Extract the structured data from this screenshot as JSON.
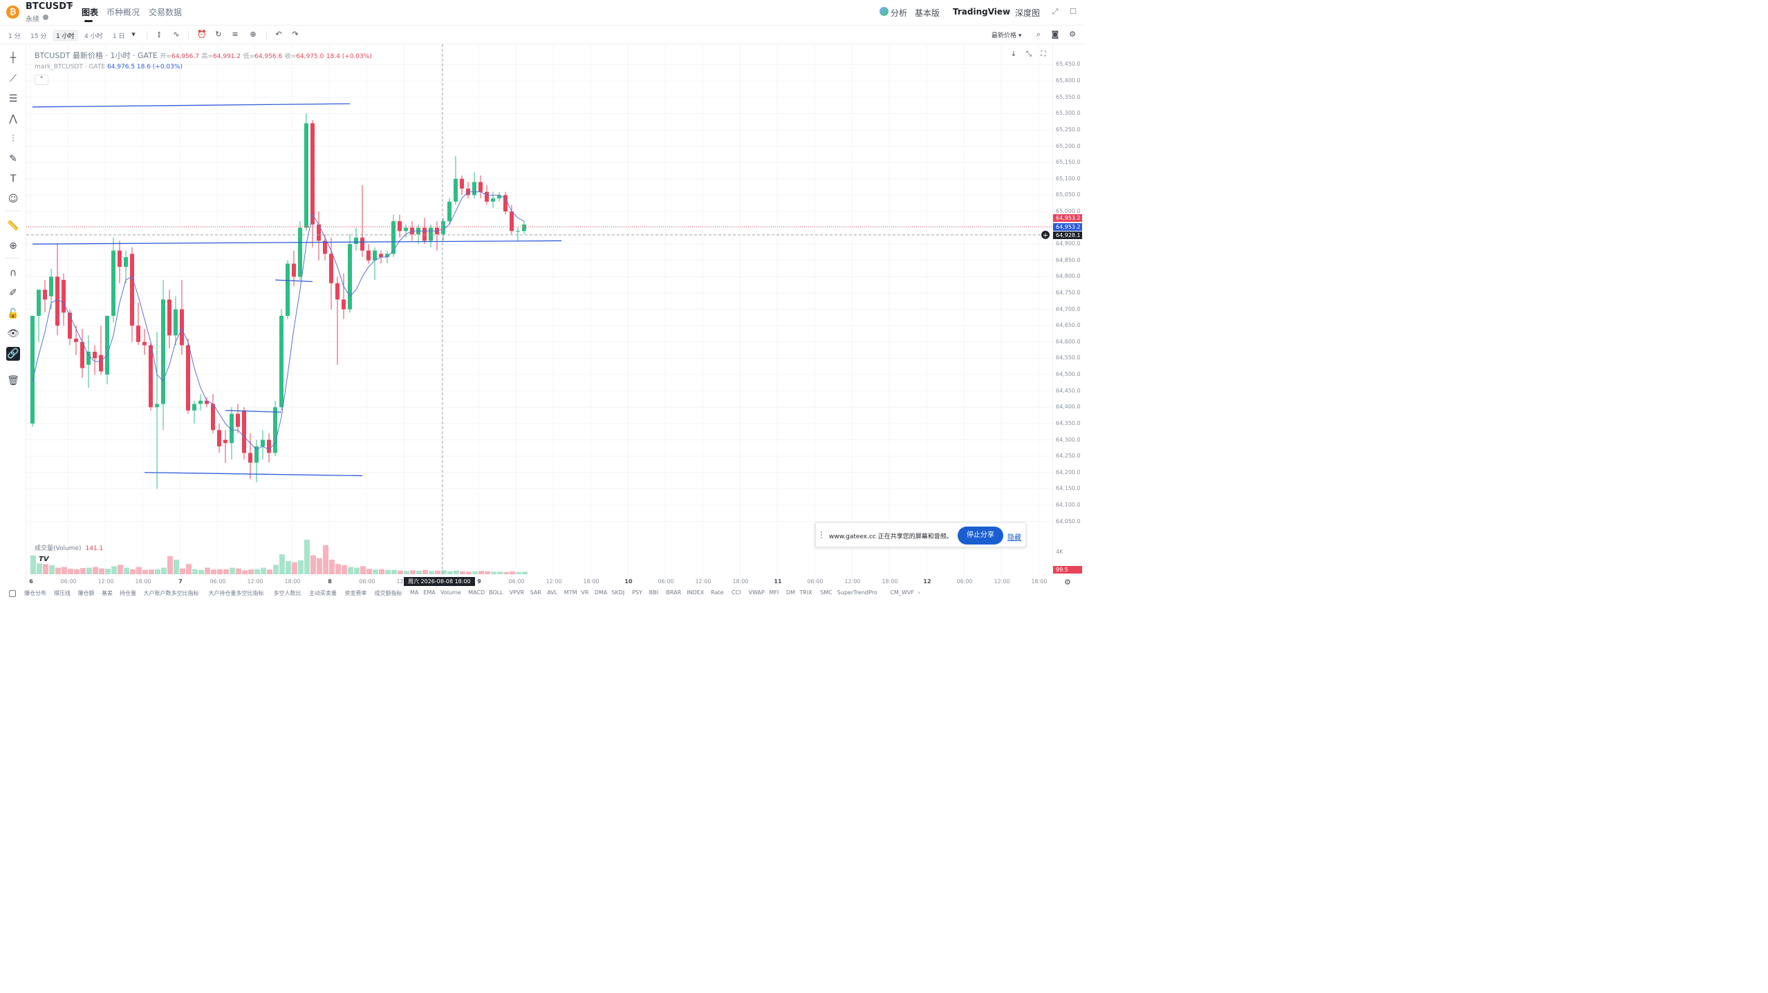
{
  "header": {
    "coin_icon": "bitcoin-icon",
    "symbol": "BTCUSDT",
    "subtitle": "永续",
    "tabs": [
      {
        "label": "图表",
        "active": true
      },
      {
        "label": "币种概况",
        "active": false
      },
      {
        "label": "交易数据",
        "active": false
      }
    ],
    "right": {
      "analysis": "分析",
      "basic": "基本版",
      "tradingview": "TradingView",
      "depth": "深度图"
    }
  },
  "toolbar": {
    "timeframes": [
      {
        "label": "1 分",
        "active": false
      },
      {
        "label": "15 分",
        "active": false
      },
      {
        "label": "1 小时",
        "active": true
      },
      {
        "label": "4 小时",
        "active": false
      },
      {
        "label": "1 日",
        "active": false
      }
    ],
    "price_type": "最新价格"
  },
  "legend": {
    "title": "BTCUSDT 最新价格 · 1小时 · GATE",
    "open_label": "开=",
    "open": "64,956.7",
    "high_label": "高=",
    "high": "64,991.2",
    "low_label": "低=",
    "low": "64,956.6",
    "close_label": "收=",
    "close": "64,975.0",
    "change": "18.4 (+0.03%)",
    "mark_title": "mark_BTCUSDT · GATE",
    "mark_value": "64,976.5",
    "mark_change": "18.6 (+0.03%)"
  },
  "volume": {
    "label": "成交量(Volume)",
    "value": "141.1",
    "axis_label": "4K",
    "last_label": "99.5"
  },
  "price_axis": {
    "ticks": [
      "65,450.0",
      "65,400.0",
      "65,350.0",
      "65,300.0",
      "65,250.0",
      "65,200.0",
      "65,150.0",
      "65,100.0",
      "65,050.0",
      "65,000.0",
      "64,900.0",
      "64,850.0",
      "64,800.0",
      "64,750.0",
      "64,700.0",
      "64,650.0",
      "64,600.0",
      "64,550.0",
      "64,500.0",
      "64,450.0",
      "64,400.0",
      "64,350.0",
      "64,300.0",
      "64,250.0",
      "64,200.0",
      "64,150.0",
      "64,100.0",
      "64,050.0"
    ],
    "labels": {
      "last": "64,953.2",
      "mark": "64,953.2",
      "crosshair": "64,928.1"
    },
    "colors": {
      "last": "#e8435a",
      "mark": "#2b5bd7",
      "crosshair": "#1e2329"
    }
  },
  "time_axis": {
    "ticks": [
      {
        "label": "6",
        "day": true
      },
      {
        "label": "06:00"
      },
      {
        "label": "12:00"
      },
      {
        "label": "18:00"
      },
      {
        "label": "7",
        "day": true
      },
      {
        "label": "06:00"
      },
      {
        "label": "12:00"
      },
      {
        "label": "18:00"
      },
      {
        "label": "8",
        "day": true
      },
      {
        "label": "06:00"
      },
      {
        "label": "12:00"
      },
      {
        "label": "18:00"
      },
      {
        "label": "9",
        "day": true
      },
      {
        "label": "06:00"
      },
      {
        "label": "12:00"
      },
      {
        "label": "18:00"
      },
      {
        "label": "10",
        "day": true
      },
      {
        "label": "06:00"
      },
      {
        "label": "12:00"
      },
      {
        "label": "18:00"
      },
      {
        "label": "11",
        "day": true
      },
      {
        "label": "06:00"
      },
      {
        "label": "12:00"
      },
      {
        "label": "18:00"
      },
      {
        "label": "12",
        "day": true
      },
      {
        "label": "06:00"
      },
      {
        "label": "12:00"
      },
      {
        "label": "18:00"
      }
    ],
    "crosshair_label": "周六 2026-08-08   18:00"
  },
  "indicators": [
    "爆仓分布",
    "撑压线",
    "爆仓额",
    "基差",
    "持仓量",
    "大户账户数多空比指标",
    "大户持仓量多空比指标",
    "多空人数比",
    "主动买卖量",
    "资金费率",
    "成交额指标",
    "MA",
    "EMA",
    "Volume",
    "MACD",
    "BOLL",
    "VPVR",
    "SAR",
    "AVL",
    "MTM",
    "VR",
    "DMA",
    "SKDJ",
    "PSY",
    "BBI",
    "BRAR",
    "INDEX",
    "Rate",
    "CCI",
    "VWAP",
    "MFI",
    "DM",
    "TRIX",
    "SMC",
    "SuperTrendPro",
    "CM_WVF"
  ],
  "share_banner": {
    "text": "www.gateex.cc 正在共享您的屏幕和音频。",
    "stop_button": "停止分享",
    "hide_link": "隐藏"
  },
  "chart_data": {
    "type": "candlestick",
    "timeframe": "1小时",
    "ylim": [
      64030,
      65470
    ],
    "up_color": "#2ebd85",
    "down_color": "#e8435a",
    "candles": [
      {
        "o": 64350,
        "h": 64680,
        "l": 64340,
        "c": 64680
      },
      {
        "o": 64680,
        "h": 64760,
        "l": 64600,
        "c": 64760
      },
      {
        "o": 64760,
        "h": 64790,
        "l": 64690,
        "c": 64730
      },
      {
        "o": 64740,
        "h": 64825,
        "l": 64700,
        "c": 64800
      },
      {
        "o": 64800,
        "h": 64900,
        "l": 64620,
        "c": 64650
      },
      {
        "o": 64790,
        "h": 64810,
        "l": 64650,
        "c": 64690
      },
      {
        "o": 64690,
        "h": 64700,
        "l": 64590,
        "c": 64610
      },
      {
        "o": 64610,
        "h": 64650,
        "l": 64560,
        "c": 64600
      },
      {
        "o": 64600,
        "h": 64640,
        "l": 64490,
        "c": 64520
      },
      {
        "o": 64530,
        "h": 64620,
        "l": 64460,
        "c": 64570
      },
      {
        "o": 64570,
        "h": 64590,
        "l": 64500,
        "c": 64550
      },
      {
        "o": 64560,
        "h": 64650,
        "l": 64500,
        "c": 64510
      },
      {
        "o": 64500,
        "h": 64680,
        "l": 64470,
        "c": 64680
      },
      {
        "o": 64680,
        "h": 64920,
        "l": 64660,
        "c": 64880
      },
      {
        "o": 64880,
        "h": 64910,
        "l": 64780,
        "c": 64830
      },
      {
        "o": 64830,
        "h": 64880,
        "l": 64780,
        "c": 64860
      },
      {
        "o": 64870,
        "h": 64890,
        "l": 64600,
        "c": 64650
      },
      {
        "o": 64650,
        "h": 64720,
        "l": 64590,
        "c": 64600
      },
      {
        "o": 64600,
        "h": 64640,
        "l": 64560,
        "c": 64590
      },
      {
        "o": 64590,
        "h": 64600,
        "l": 64390,
        "c": 64400
      },
      {
        "o": 64400,
        "h": 64630,
        "l": 64150,
        "c": 64410
      },
      {
        "o": 64410,
        "h": 64790,
        "l": 64330,
        "c": 64730
      },
      {
        "o": 64730,
        "h": 64760,
        "l": 64580,
        "c": 64620
      },
      {
        "o": 64620,
        "h": 64740,
        "l": 64590,
        "c": 64700
      },
      {
        "o": 64700,
        "h": 64790,
        "l": 64560,
        "c": 64590
      },
      {
        "o": 64590,
        "h": 64610,
        "l": 64380,
        "c": 64390
      },
      {
        "o": 64390,
        "h": 64420,
        "l": 64350,
        "c": 64410
      },
      {
        "o": 64410,
        "h": 64440,
        "l": 64390,
        "c": 64420
      },
      {
        "o": 64420,
        "h": 64430,
        "l": 64400,
        "c": 64410
      },
      {
        "o": 64410,
        "h": 64440,
        "l": 64320,
        "c": 64330
      },
      {
        "o": 64330,
        "h": 64350,
        "l": 64260,
        "c": 64280
      },
      {
        "o": 64300,
        "h": 64330,
        "l": 64230,
        "c": 64290
      },
      {
        "o": 64290,
        "h": 64400,
        "l": 64240,
        "c": 64380
      },
      {
        "o": 64380,
        "h": 64410,
        "l": 64320,
        "c": 64340
      },
      {
        "o": 64390,
        "h": 64400,
        "l": 64240,
        "c": 64260
      },
      {
        "o": 64260,
        "h": 64320,
        "l": 64180,
        "c": 64230
      },
      {
        "o": 64230,
        "h": 64300,
        "l": 64170,
        "c": 64280
      },
      {
        "o": 64280,
        "h": 64330,
        "l": 64240,
        "c": 64300
      },
      {
        "o": 64300,
        "h": 64320,
        "l": 64230,
        "c": 64260
      },
      {
        "o": 64260,
        "h": 64420,
        "l": 64250,
        "c": 64400
      },
      {
        "o": 64400,
        "h": 64700,
        "l": 64390,
        "c": 64680
      },
      {
        "o": 64680,
        "h": 64850,
        "l": 64670,
        "c": 64840
      },
      {
        "o": 64840,
        "h": 64880,
        "l": 64770,
        "c": 64800
      },
      {
        "o": 64800,
        "h": 64970,
        "l": 64790,
        "c": 64950
      },
      {
        "o": 64950,
        "h": 65300,
        "l": 64940,
        "c": 65270
      },
      {
        "o": 65270,
        "h": 65280,
        "l": 64890,
        "c": 64960
      },
      {
        "o": 64960,
        "h": 65000,
        "l": 64850,
        "c": 64910
      },
      {
        "o": 64910,
        "h": 64930,
        "l": 64850,
        "c": 64870
      },
      {
        "o": 64870,
        "h": 64920,
        "l": 64700,
        "c": 64780
      },
      {
        "o": 64780,
        "h": 64800,
        "l": 64530,
        "c": 64730
      },
      {
        "o": 64730,
        "h": 64810,
        "l": 64670,
        "c": 64700
      },
      {
        "o": 64700,
        "h": 64930,
        "l": 64690,
        "c": 64900
      },
      {
        "o": 64900,
        "h": 64950,
        "l": 64880,
        "c": 64920
      },
      {
        "o": 64920,
        "h": 65080,
        "l": 64860,
        "c": 64880
      },
      {
        "o": 64880,
        "h": 64900,
        "l": 64840,
        "c": 64850
      },
      {
        "o": 64850,
        "h": 64890,
        "l": 64790,
        "c": 64880
      },
      {
        "o": 64870,
        "h": 64880,
        "l": 64840,
        "c": 64860
      },
      {
        "o": 64860,
        "h": 64880,
        "l": 64840,
        "c": 64870
      },
      {
        "o": 64870,
        "h": 64990,
        "l": 64860,
        "c": 64970
      },
      {
        "o": 64970,
        "h": 64990,
        "l": 64920,
        "c": 64940
      },
      {
        "o": 64940,
        "h": 64960,
        "l": 64920,
        "c": 64950
      },
      {
        "o": 64950,
        "h": 64970,
        "l": 64910,
        "c": 64930
      },
      {
        "o": 64930,
        "h": 64960,
        "l": 64900,
        "c": 64950
      },
      {
        "o": 64950,
        "h": 64980,
        "l": 64900,
        "c": 64910
      },
      {
        "o": 64910,
        "h": 64960,
        "l": 64890,
        "c": 64950
      },
      {
        "o": 64950,
        "h": 64970,
        "l": 64880,
        "c": 64930
      },
      {
        "o": 64930,
        "h": 64980,
        "l": 64910,
        "c": 64970
      },
      {
        "o": 64970,
        "h": 65040,
        "l": 64960,
        "c": 65030
      },
      {
        "o": 65030,
        "h": 65170,
        "l": 65020,
        "c": 65100
      },
      {
        "o": 65100,
        "h": 65110,
        "l": 65050,
        "c": 65070
      },
      {
        "o": 65070,
        "h": 65090,
        "l": 65040,
        "c": 65050
      },
      {
        "o": 65050,
        "h": 65120,
        "l": 65040,
        "c": 65090
      },
      {
        "o": 65090,
        "h": 65110,
        "l": 65040,
        "c": 65060
      },
      {
        "o": 65060,
        "h": 65080,
        "l": 65020,
        "c": 65030
      },
      {
        "o": 65030,
        "h": 65060,
        "l": 65010,
        "c": 65040
      },
      {
        "o": 65040,
        "h": 65060,
        "l": 65030,
        "c": 65050
      },
      {
        "o": 65050,
        "h": 65060,
        "l": 64990,
        "c": 65000
      },
      {
        "o": 65000,
        "h": 65020,
        "l": 64930,
        "c": 64940
      },
      {
        "o": 64940,
        "h": 64950,
        "l": 64910,
        "c": 64940
      },
      {
        "o": 64940,
        "h": 64970,
        "l": 64930,
        "c": 64960
      }
    ],
    "volumes": [
      52,
      30,
      28,
      25,
      18,
      20,
      15,
      14,
      17,
      18,
      20,
      16,
      15,
      22,
      26,
      18,
      14,
      20,
      12,
      13,
      14,
      18,
      50,
      40,
      16,
      28,
      14,
      12,
      18,
      13,
      14,
      14,
      18,
      16,
      11,
      13,
      14,
      18,
      13,
      26,
      55,
      36,
      33,
      38,
      95,
      52,
      44,
      80,
      40,
      28,
      25,
      20,
      18,
      22,
      15,
      13,
      14,
      12,
      12,
      10,
      9,
      11,
      10,
      12,
      9,
      10,
      11,
      8,
      10,
      8,
      7,
      8,
      9,
      8,
      7,
      7,
      6,
      8,
      6,
      7
    ],
    "ma_line_color": "#5b6fd1",
    "ma": [
      64480,
      64560,
      64630,
      64720,
      64730,
      64720,
      64680,
      64640,
      64600,
      64560,
      64540,
      64540,
      64560,
      64620,
      64720,
      64790,
      64800,
      64740,
      64670,
      64600,
      64500,
      64480,
      64530,
      64600,
      64640,
      64600,
      64520,
      64460,
      64420,
      64410,
      64380,
      64350,
      64330,
      64330,
      64310,
      64290,
      64270,
      64280,
      64270,
      64290,
      64370,
      64500,
      64640,
      64760,
      64900,
      64990,
      64960,
      64920,
      64880,
      64830,
      64770,
      64740,
      64760,
      64800,
      64830,
      64850,
      64860,
      64860,
      64880,
      64910,
      64930,
      64940,
      64940,
      64940,
      64940,
      64940,
      64945,
      64960,
      65000,
      65040,
      65060,
      65060,
      65060,
      65050,
      65050,
      65050,
      65040,
      65000,
      64980,
      64970
    ],
    "trend_lines": [
      {
        "from": [
          0,
          65320
        ],
        "to": [
          51,
          65330
        ]
      },
      {
        "from": [
          0,
          64900
        ],
        "to": [
          85,
          64910
        ]
      },
      {
        "from": [
          18,
          64200
        ],
        "to": [
          53,
          64190
        ]
      },
      {
        "from": [
          31,
          64390
        ],
        "to": [
          40,
          64385
        ]
      },
      {
        "from": [
          39,
          64790
        ],
        "to": [
          45,
          64785
        ]
      }
    ],
    "last_price": 64953.2,
    "mark_price": 64953.2,
    "crosshair_price": 64928.1
  }
}
